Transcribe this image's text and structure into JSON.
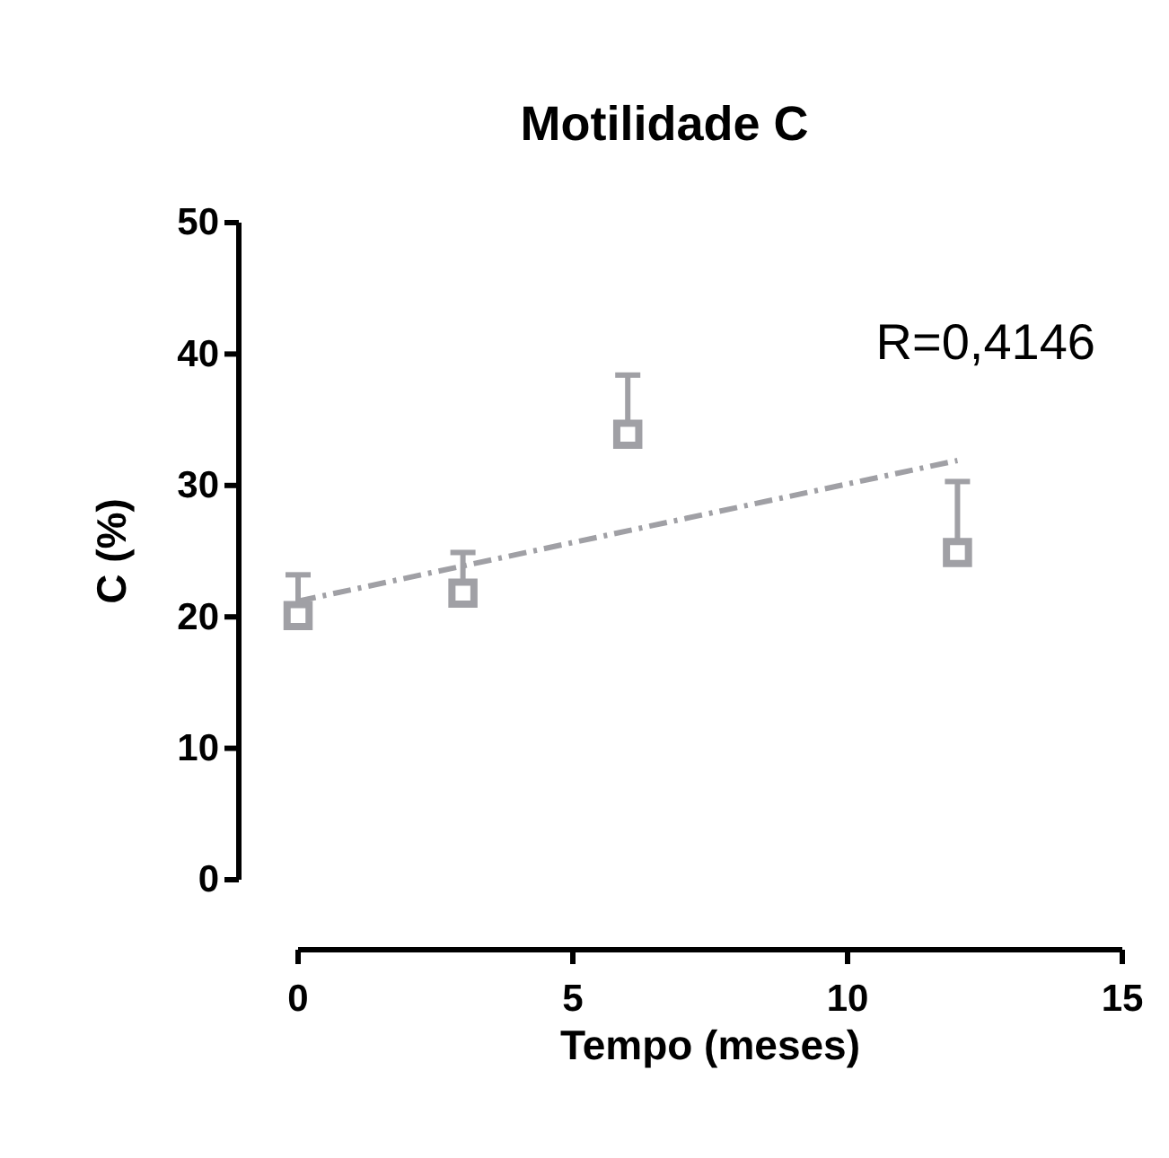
{
  "chart_data": {
    "type": "scatter",
    "title": "Motilidade C",
    "xlabel": "Tempo (meses)",
    "ylabel": "C (%)",
    "xlim": [
      0,
      15
    ],
    "xticks": [
      0,
      5,
      10,
      15
    ],
    "ylim": [
      0,
      50
    ],
    "yticks": [
      0,
      10,
      20,
      30,
      40,
      50
    ],
    "grid": false,
    "series": [
      {
        "marker": "square",
        "color": "#a0a0a5",
        "x": [
          0,
          3,
          6,
          12
        ],
        "values": [
          20.1,
          21.8,
          33.9,
          24.9
        ],
        "errors": [
          [
            20.1,
            23.2
          ],
          [
            21.8,
            24.9
          ],
          [
            33.9,
            38.4
          ],
          [
            24.9,
            30.3
          ]
        ]
      },
      {
        "type": "line",
        "color": "#a0a0a5",
        "line_style": "dashed",
        "x": [
          0,
          12
        ],
        "values": [
          21.2,
          31.9
        ]
      }
    ],
    "annotations": [
      {
        "text": "R=0,4146"
      }
    ]
  }
}
